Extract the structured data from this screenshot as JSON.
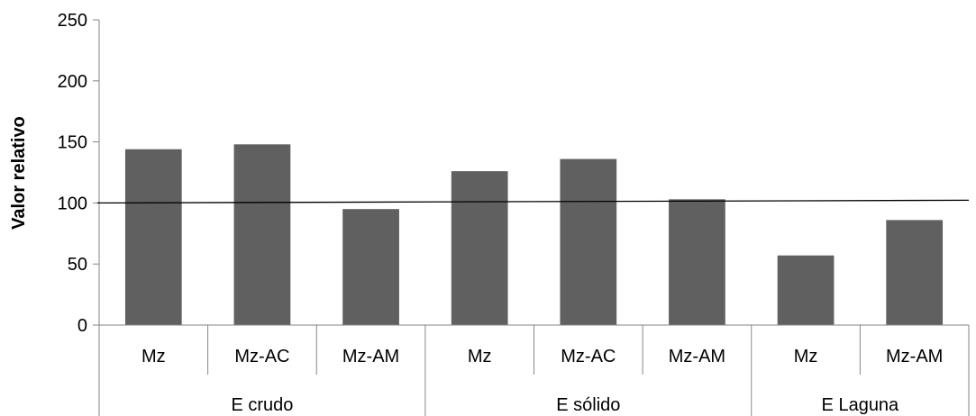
{
  "chart_data": {
    "type": "bar",
    "ylabel": "Valor relativo",
    "ylim": [
      0,
      250
    ],
    "yticks": [
      "0",
      "50",
      "100",
      "150",
      "200",
      "250"
    ],
    "groups": [
      {
        "label": "E crudo",
        "categories": [
          "Mz",
          "Mz-AC",
          "Mz-AM"
        ],
        "values": [
          144,
          148,
          95
        ]
      },
      {
        "label": "E sólido",
        "categories": [
          "Mz",
          "Mz-AC",
          "Mz-AM"
        ],
        "values": [
          126,
          136,
          103
        ]
      },
      {
        "label": "E Laguna",
        "categories": [
          "Mz",
          "Mz-AM"
        ],
        "values": [
          57,
          86
        ]
      }
    ],
    "reference_line": 100,
    "bar_color": "#606060",
    "grid": false,
    "legend": "none"
  }
}
